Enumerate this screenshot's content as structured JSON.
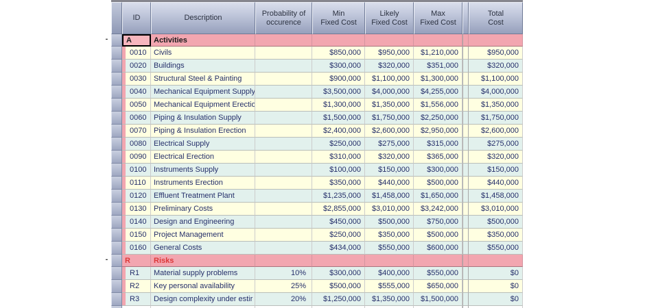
{
  "ui": {
    "collapse_glyph": "-"
  },
  "columns": {
    "id": {
      "line1": "ID"
    },
    "description": {
      "line1": "Description"
    },
    "probability": {
      "line1": "Probability of",
      "line2": "occurence"
    },
    "min": {
      "line1": "Min",
      "line2": "Fixed Cost"
    },
    "likely": {
      "line1": "Likely",
      "line2": "Fixed Cost"
    },
    "max": {
      "line1": "Max",
      "line2": "Fixed Cost"
    },
    "separator": {
      "line1": ""
    },
    "total": {
      "line1": "Total",
      "line2": "Cost"
    }
  },
  "groups": [
    {
      "id": "A",
      "title": "Activities",
      "selected": true,
      "rows": [
        {
          "id": "0010",
          "description": "Civils",
          "probability": "",
          "min": "$850,000",
          "likely": "$950,000",
          "max": "$1,210,000",
          "total": "$950,000"
        },
        {
          "id": "0020",
          "description": "Buildings",
          "probability": "",
          "min": "$300,000",
          "likely": "$320,000",
          "max": "$351,000",
          "total": "$320,000"
        },
        {
          "id": "0030",
          "description": "Structural Steel & Painting",
          "probability": "",
          "min": "$900,000",
          "likely": "$1,100,000",
          "max": "$1,300,000",
          "total": "$1,100,000"
        },
        {
          "id": "0040",
          "description": "Mechanical Equipment Supply",
          "probability": "",
          "min": "$3,500,000",
          "likely": "$4,000,000",
          "max": "$4,255,000",
          "total": "$4,000,000"
        },
        {
          "id": "0050",
          "description": "Mechanical Equipment Erectio",
          "probability": "",
          "min": "$1,300,000",
          "likely": "$1,350,000",
          "max": "$1,556,000",
          "total": "$1,350,000"
        },
        {
          "id": "0060",
          "description": "Piping & Insulation Supply",
          "probability": "",
          "min": "$1,500,000",
          "likely": "$1,750,000",
          "max": "$2,250,000",
          "total": "$1,750,000"
        },
        {
          "id": "0070",
          "description": "Piping & Insulation Erection",
          "probability": "",
          "min": "$2,400,000",
          "likely": "$2,600,000",
          "max": "$2,950,000",
          "total": "$2,600,000"
        },
        {
          "id": "0080",
          "description": "Electrical Supply",
          "probability": "",
          "min": "$250,000",
          "likely": "$275,000",
          "max": "$315,000",
          "total": "$275,000"
        },
        {
          "id": "0090",
          "description": "Electrical Erection",
          "probability": "",
          "min": "$310,000",
          "likely": "$320,000",
          "max": "$365,000",
          "total": "$320,000"
        },
        {
          "id": "0100",
          "description": "Instruments Supply",
          "probability": "",
          "min": "$100,000",
          "likely": "$150,000",
          "max": "$300,000",
          "total": "$150,000"
        },
        {
          "id": "0110",
          "description": "Instruments Erection",
          "probability": "",
          "min": "$350,000",
          "likely": "$440,000",
          "max": "$500,000",
          "total": "$440,000"
        },
        {
          "id": "0120",
          "description": "Effluent Treatment Plant",
          "probability": "",
          "min": "$1,235,000",
          "likely": "$1,458,000",
          "max": "$1,650,000",
          "total": "$1,458,000"
        },
        {
          "id": "0130",
          "description": "Preliminary Costs",
          "probability": "",
          "min": "$2,855,000",
          "likely": "$3,010,000",
          "max": "$3,242,000",
          "total": "$3,010,000"
        },
        {
          "id": "0140",
          "description": "Design and Engineering",
          "probability": "",
          "min": "$450,000",
          "likely": "$500,000",
          "max": "$750,000",
          "total": "$500,000"
        },
        {
          "id": "0150",
          "description": "Project Management",
          "probability": "",
          "min": "$250,000",
          "likely": "$350,000",
          "max": "$500,000",
          "total": "$350,000"
        },
        {
          "id": "0160",
          "description": "General Costs",
          "probability": "",
          "min": "$434,000",
          "likely": "$550,000",
          "max": "$600,000",
          "total": "$550,000"
        }
      ]
    },
    {
      "id": "R",
      "title": "Risks",
      "selected": false,
      "rows": [
        {
          "id": "R1",
          "description": "Material supply problems",
          "probability": "10%",
          "min": "$300,000",
          "likely": "$400,000",
          "max": "$550,000",
          "total": "$0"
        },
        {
          "id": "R2",
          "description": "Key personal availability",
          "probability": "25%",
          "min": "$500,000",
          "likely": "$555,000",
          "max": "$650,000",
          "total": "$0"
        },
        {
          "id": "R3",
          "description": "Design complexity under estir",
          "probability": "20%",
          "min": "$1,250,000",
          "likely": "$1,350,000",
          "max": "$1,500,000",
          "total": "$0"
        }
      ]
    }
  ],
  "colors": {
    "row_yellow": "#ffffe1",
    "row_cyan": "#e2f1ed",
    "group_pink": "#f2a6b0",
    "group_selected_cell": "#f7b6be",
    "risk_text_red": "#dc3838",
    "cell_text_navy": "#252f6a"
  }
}
